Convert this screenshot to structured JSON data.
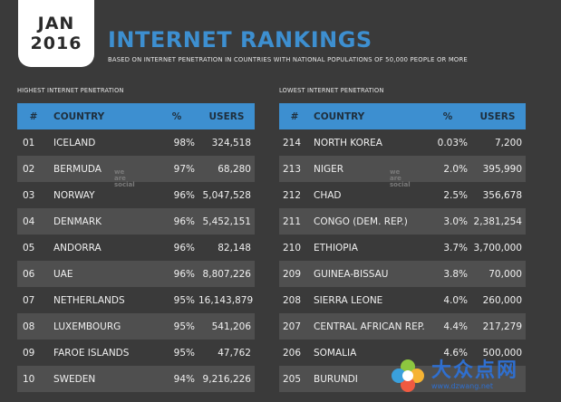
{
  "badge": {
    "month": "JAN",
    "year": "2016"
  },
  "title": "INTERNET RANKINGS",
  "subtitle": "BASED ON INTERNET PENETRATION IN COUNTRIES WITH NATIONAL POPULATIONS OF 50,000 PEOPLE OR MORE",
  "watermark": {
    "line1": "we",
    "line2": "are",
    "line3": "social"
  },
  "site_logo": {
    "text": "大众点网",
    "url": "www.dzwang.net"
  },
  "colors": {
    "accent": "#3d8fd0",
    "background": "#3a3a3a",
    "row_alt": "#4f4f4f"
  },
  "chart_data": [
    {
      "type": "table",
      "title": "HIGHEST INTERNET PENETRATION",
      "columns": [
        "#",
        "COUNTRY",
        "%",
        "USERS"
      ],
      "rows": [
        [
          "01",
          "ICELAND",
          "98%",
          "324,518"
        ],
        [
          "02",
          "BERMUDA",
          "97%",
          "68,280"
        ],
        [
          "03",
          "NORWAY",
          "96%",
          "5,047,528"
        ],
        [
          "04",
          "DENMARK",
          "96%",
          "5,452,151"
        ],
        [
          "05",
          "ANDORRA",
          "96%",
          "82,148"
        ],
        [
          "06",
          "UAE",
          "96%",
          "8,807,226"
        ],
        [
          "07",
          "NETHERLANDS",
          "95%",
          "16,143,879"
        ],
        [
          "08",
          "LUXEMBOURG",
          "95%",
          "541,206"
        ],
        [
          "09",
          "FAROE ISLANDS",
          "95%",
          "47,762"
        ],
        [
          "10",
          "SWEDEN",
          "94%",
          "9,216,226"
        ]
      ]
    },
    {
      "type": "table",
      "title": "LOWEST INTERNET PENETRATION",
      "columns": [
        "#",
        "COUNTRY",
        "%",
        "USERS"
      ],
      "rows": [
        [
          "214",
          "NORTH KOREA",
          "0.03%",
          "7,200"
        ],
        [
          "213",
          "NIGER",
          "2.0%",
          "395,990"
        ],
        [
          "212",
          "CHAD",
          "2.5%",
          "356,678"
        ],
        [
          "211",
          "CONGO (DEM. REP.)",
          "3.0%",
          "2,381,254"
        ],
        [
          "210",
          "ETHIOPIA",
          "3.7%",
          "3,700,000"
        ],
        [
          "209",
          "GUINEA-BISSAU",
          "3.8%",
          "70,000"
        ],
        [
          "208",
          "SIERRA LEONE",
          "4.0%",
          "260,000"
        ],
        [
          "207",
          "CENTRAL AFRICAN REP.",
          "4.4%",
          "217,279"
        ],
        [
          "206",
          "SOMALIA",
          "4.6%",
          "500,000"
        ],
        [
          "205",
          "BURUNDI",
          "",
          ""
        ]
      ]
    }
  ]
}
